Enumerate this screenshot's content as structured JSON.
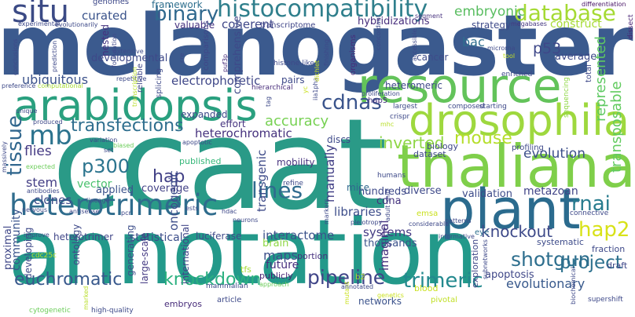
{
  "words": [
    {
      "text": "melanogaster",
      "color": "#3b5a8e"
    },
    {
      "text": "ccaat",
      "color": "#2a9a87"
    },
    {
      "text": "annotation",
      "color": "#23998a"
    },
    {
      "text": "resource",
      "color": "#63c35a"
    },
    {
      "text": "arabidopsis",
      "color": "#2aa07f"
    },
    {
      "text": "thaliana",
      "color": "#7fcf4a"
    },
    {
      "text": "drosophila",
      "color": "#9ed83e"
    },
    {
      "text": "plant",
      "color": "#2b6b8e"
    },
    {
      "text": "heterotrimeric",
      "color": "#2f6c8d"
    },
    {
      "text": "histocompatibility",
      "color": "#2f7f8c"
    },
    {
      "text": "situ",
      "color": "#3b4a85"
    },
    {
      "text": "database",
      "color": "#a5da34"
    },
    {
      "text": "binary",
      "color": "#30698e"
    },
    {
      "text": "curated",
      "color": "#3a538b"
    },
    {
      "text": "embryonic",
      "color": "#59bd60"
    },
    {
      "text": "framework",
      "color": "#2e6f8e"
    },
    {
      "text": "transcriptome",
      "color": "#404688"
    },
    {
      "text": "hybridizations",
      "color": "#472e7c"
    },
    {
      "text": "coherent",
      "color": "#3f4788"
    },
    {
      "text": "valuable",
      "color": "#46317e"
    },
    {
      "text": "segment",
      "color": "#48337f"
    },
    {
      "text": "megabases",
      "color": "#453781"
    },
    {
      "text": "differentiation",
      "color": "#471365"
    },
    {
      "text": "dissect",
      "color": "#482273"
    },
    {
      "text": "construct",
      "color": "#a7db35"
    },
    {
      "text": "strategy",
      "color": "#3e4a89"
    },
    {
      "text": "mb",
      "color": "#2c738e"
    },
    {
      "text": "tissue",
      "color": "#31678e"
    },
    {
      "text": "cdnas",
      "color": "#3a548c"
    },
    {
      "text": "transfections",
      "color": "#2e6e8e"
    },
    {
      "text": "accuracy",
      "color": "#77d153"
    },
    {
      "text": "mouse",
      "color": "#b5de2b"
    },
    {
      "text": "inverted",
      "color": "#8ed645"
    },
    {
      "text": "evolution",
      "color": "#3c4f8a"
    },
    {
      "text": "project",
      "color": "#2d718e"
    },
    {
      "text": "hap2",
      "color": "#d8e219"
    },
    {
      "text": "rnai",
      "color": "#287c8e"
    },
    {
      "text": "knockout",
      "color": "#3e4a89"
    },
    {
      "text": "shotgun",
      "color": "#2e6f8e"
    },
    {
      "text": "trimeric",
      "color": "#23898e"
    },
    {
      "text": "pipeline",
      "color": "#404588"
    },
    {
      "text": "knockdown",
      "color": "#2ab07f"
    },
    {
      "text": "euchromatic",
      "color": "#38588c"
    },
    {
      "text": "lines",
      "color": "#2f6b8e"
    },
    {
      "text": "p300",
      "color": "#2b748e"
    },
    {
      "text": "vector",
      "color": "#4ac16d"
    },
    {
      "text": "hap",
      "color": "#424186"
    },
    {
      "text": "p53",
      "color": "#3f4889"
    },
    {
      "text": "bac",
      "color": "#2e6e8e"
    },
    {
      "text": "ubiquitous",
      "color": "#3b528b"
    },
    {
      "text": "electrophoretic",
      "color": "#3f4788"
    },
    {
      "text": "heterochromatic",
      "color": "#46327e"
    },
    {
      "text": "flies",
      "color": "#443983"
    },
    {
      "text": "stem",
      "color": "#433e85"
    },
    {
      "text": "clones",
      "color": "#3e4c8a"
    },
    {
      "text": "manually",
      "color": "#424086"
    },
    {
      "text": "systems",
      "color": "#443b84"
    },
    {
      "text": "interactome",
      "color": "#3b528b"
    },
    {
      "text": "libraries",
      "color": "#3d4d8a"
    },
    {
      "text": "cdna",
      "color": "#45337f"
    },
    {
      "text": "maps",
      "color": "#3c4f8a"
    },
    {
      "text": "community",
      "color": "#3a548c"
    },
    {
      "text": "future",
      "color": "#46307e"
    },
    {
      "text": "publicly",
      "color": "#482374"
    },
    {
      "text": "evolutionary",
      "color": "#38598c"
    },
    {
      "text": "transposable",
      "color": "#62cb5f"
    },
    {
      "text": "represented",
      "color": "#5ec962"
    },
    {
      "text": "oncogenic",
      "color": "#3d4e8a"
    },
    {
      "text": "transgenic",
      "color": "#3e4b89"
    },
    {
      "text": "imaginal",
      "color": "#46317e"
    },
    {
      "text": "thousands",
      "color": "#3b528b"
    },
    {
      "text": "metazoan",
      "color": "#414487"
    },
    {
      "text": "validation",
      "color": "#3e4c8a"
    },
    {
      "text": "diverse",
      "color": "#3e4989"
    },
    {
      "text": "hundreds",
      "color": "#3e4989"
    },
    {
      "text": "mice",
      "color": "#31688e"
    },
    {
      "text": "coverage",
      "color": "#424186"
    },
    {
      "text": "applied",
      "color": "#3b528b"
    },
    {
      "text": "published",
      "color": "#35b779"
    },
    {
      "text": "mobility",
      "color": "#48347f"
    },
    {
      "text": "apoptosis",
      "color": "#3f4788"
    },
    {
      "text": "average",
      "color": "#3e4a89"
    },
    {
      "text": "cancer",
      "color": "#3e4c8a"
    },
    {
      "text": "brain",
      "color": "#8fd744"
    },
    {
      "text": "ontology",
      "color": "#3e4989"
    },
    {
      "text": "statistical",
      "color": "#3d4e8a"
    },
    {
      "text": "luciferase",
      "color": "#3e4a89"
    },
    {
      "text": "generating",
      "color": "#3d4e8a"
    },
    {
      "text": "large-scale",
      "color": "#443a83"
    },
    {
      "text": "international",
      "color": "#404588"
    },
    {
      "text": "developing",
      "color": "#3e4989"
    },
    {
      "text": "proximal",
      "color": "#3f4788"
    },
    {
      "text": "networks",
      "color": "#3b528b"
    },
    {
      "text": "heterotrimer",
      "color": "#404688"
    },
    {
      "text": "fraction",
      "color": "#3e4989"
    },
    {
      "text": "draft",
      "color": "#3f4788"
    },
    {
      "text": "systematic",
      "color": "#3e4c8a"
    },
    {
      "text": "exploration",
      "color": "#3f4788"
    },
    {
      "text": "tfs",
      "color": "#a5db36"
    },
    {
      "text": "covering",
      "color": "#3e4989"
    },
    {
      "text": "comprehensive",
      "color": "#3f4788"
    },
    {
      "text": "reliable",
      "color": "#45337f"
    },
    {
      "text": "nested",
      "color": "#3e4989"
    },
    {
      "text": "developmental",
      "color": "#3e4a89"
    },
    {
      "text": "splicing",
      "color": "#3e4a89"
    },
    {
      "text": "expanded",
      "color": "#45337f"
    },
    {
      "text": "effort",
      "color": "#3e4989"
    },
    {
      "text": "pairs",
      "color": "#3f4788"
    },
    {
      "text": "heteromeric",
      "color": "#46307e"
    },
    {
      "text": "hap5",
      "color": "#3e4989"
    },
    {
      "text": "discs",
      "color": "#3f4788"
    },
    {
      "text": "biology",
      "color": "#3f4788"
    },
    {
      "text": "dataset",
      "color": "#3e4989"
    },
    {
      "text": "profiling",
      "color": "#472c7a"
    },
    {
      "text": "organisms",
      "color": "#3f4788"
    },
    {
      "text": "comparisons",
      "color": "#472c7a"
    },
    {
      "text": "puf3p",
      "color": "#3e4989"
    },
    {
      "text": "histone-like",
      "color": "#472c7a"
    },
    {
      "text": "hierarchical",
      "color": "#3e4989"
    },
    {
      "text": "genomes",
      "color": "#3e4989"
    },
    {
      "text": "embryos",
      "color": "#472c7a"
    },
    {
      "text": "portion",
      "color": "#46307e"
    },
    {
      "text": "fetal",
      "color": "#c0df25"
    },
    {
      "text": "b2",
      "color": "#a8db34"
    },
    {
      "text": "blood",
      "color": "#cae11f"
    },
    {
      "text": "pivotal",
      "color": "#c0df25"
    },
    {
      "text": "eye",
      "color": "#2d708e"
    },
    {
      "text": "cdc25c",
      "color": "#b8de29"
    },
    {
      "text": "high-quality",
      "color": "#3e4a89"
    },
    {
      "text": "cytogenetic",
      "color": "#6ccd5a"
    },
    {
      "text": "article",
      "color": "#3e4a89"
    },
    {
      "text": "mammalian",
      "color": "#3e4989"
    },
    {
      "text": "approach",
      "color": "#6ccd5a"
    },
    {
      "text": "supershift",
      "color": "#3e4989"
    },
    {
      "text": "biochemical",
      "color": "#3e4989"
    },
    {
      "text": "locus",
      "color": "#3e4a89"
    },
    {
      "text": "informative",
      "color": "#3e4a89"
    },
    {
      "text": "subnetworks",
      "color": "#3e4989"
    },
    {
      "text": "insight",
      "color": "#3e4989"
    },
    {
      "text": "refine",
      "color": "#3e4a89"
    },
    {
      "text": "humans",
      "color": "#3e4a89"
    },
    {
      "text": "crispr",
      "color": "#3e4a89"
    },
    {
      "text": "mhc",
      "color": "#3e4989"
    },
    {
      "text": "largest",
      "color": "#b8de29"
    },
    {
      "text": "composed",
      "color": "#3e4a89"
    },
    {
      "text": "starting",
      "color": "#3e4989"
    },
    {
      "text": "oligonucleotide",
      "color": "#3e4989"
    },
    {
      "text": "proliferation",
      "color": "#8fd744"
    },
    {
      "text": "enriched",
      "color": "#3e4989"
    },
    {
      "text": "tool",
      "color": "#3e4989"
    },
    {
      "text": "microrna",
      "color": "#3e4989"
    },
    {
      "text": "derived",
      "color": "#3e4a89"
    },
    {
      "text": "sequencing",
      "color": "#3e4989"
    },
    {
      "text": "analyze",
      "color": "#c0df25"
    },
    {
      "text": "total",
      "color": "#3e4989"
    },
    {
      "text": "concordant",
      "color": "#3e4989"
    },
    {
      "text": "accessible",
      "color": "#3e4989"
    },
    {
      "text": "technology",
      "color": "#3e4a89"
    },
    {
      "text": "finishing",
      "color": "#3e4a89"
    },
    {
      "text": "experimental",
      "color": "#3e4989"
    },
    {
      "text": "evolutionarily",
      "color": "#3e4989"
    },
    {
      "text": "foundation",
      "color": "#3e4a89"
    },
    {
      "text": "conclusions",
      "color": "#a8db34"
    },
    {
      "text": "prediction",
      "color": "#3e4989"
    },
    {
      "text": "preference",
      "color": "#3e4989"
    },
    {
      "text": "computational",
      "color": "#3e4989"
    },
    {
      "text": "unique",
      "color": "#6ccd5a"
    },
    {
      "text": "produced",
      "color": "#3e4989"
    },
    {
      "text": "massively",
      "color": "#3e4989"
    },
    {
      "text": "expected",
      "color": "#3e4a89"
    },
    {
      "text": "antibodies",
      "color": "#b8de29"
    },
    {
      "text": "nervous",
      "color": "#3e4989"
    },
    {
      "text": "improve",
      "color": "#3e4a89"
    },
    {
      "text": "marked",
      "color": "#3e4989"
    },
    {
      "text": "antisense",
      "color": "#3e4989"
    },
    {
      "text": "lineage",
      "color": "#6ccd5a"
    },
    {
      "text": "pcr",
      "color": "#3e4989"
    },
    {
      "text": "variation",
      "color": "#3e4989"
    },
    {
      "text": "biased",
      "color": "#3e4a89"
    },
    {
      "text": "set",
      "color": "#3e4a89"
    },
    {
      "text": "apoptotic",
      "color": "#3e4989"
    },
    {
      "text": "repetitive",
      "color": "#b8de29"
    },
    {
      "text": "extensive",
      "color": "#cae11f"
    },
    {
      "text": "snps",
      "color": "#3e4989"
    },
    {
      "text": "cre",
      "color": "#3e4a89"
    },
    {
      "text": "transcription",
      "color": "#cae11f"
    },
    {
      "text": "yc",
      "color": "#3e4989"
    },
    {
      "text": "iia1pha",
      "color": "#3e4989"
    },
    {
      "text": "tag",
      "color": "#3e4989"
    },
    {
      "text": "dichlet",
      "color": "#3e4989"
    },
    {
      "text": "ests",
      "color": "#3e4989"
    },
    {
      "text": "hdac",
      "color": "#3e4989"
    },
    {
      "text": "neurons",
      "color": "#3e4989"
    },
    {
      "text": "markers",
      "color": "#cae11f"
    },
    {
      "text": "shift",
      "color": "#3e4989"
    },
    {
      "text": "adult",
      "color": "#3e4989"
    },
    {
      "text": "pleiotropy",
      "color": "#cae11f"
    },
    {
      "text": "emsa",
      "color": "#3e4989"
    },
    {
      "text": "considerable",
      "color": "#cae11f"
    },
    {
      "text": "patterns",
      "color": "#3e4989"
    },
    {
      "text": "mutant",
      "color": "#3e4989"
    },
    {
      "text": "annotated",
      "color": "#6ccd5a"
    },
    {
      "text": "genetics",
      "color": "#6ccd5a"
    },
    {
      "text": "connective",
      "color": "#cae11f"
    },
    {
      "text": "reverse",
      "color": "#3e4989"
    }
  ]
}
